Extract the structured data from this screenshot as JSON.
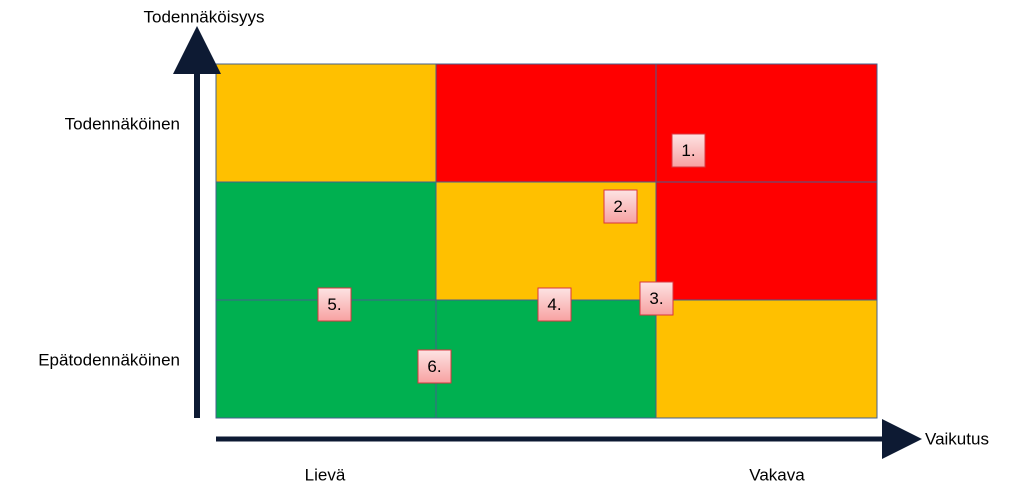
{
  "axes": {
    "y_label": "Todennäköisyys",
    "x_label": "Vaikutus"
  },
  "rows": [
    "Todennäköinen",
    "Epätodennäköinen"
  ],
  "columns": [
    "Lievä",
    "Vakava"
  ],
  "items": [
    "1.",
    "2.",
    "3.",
    "4.",
    "5.",
    "6."
  ]
}
